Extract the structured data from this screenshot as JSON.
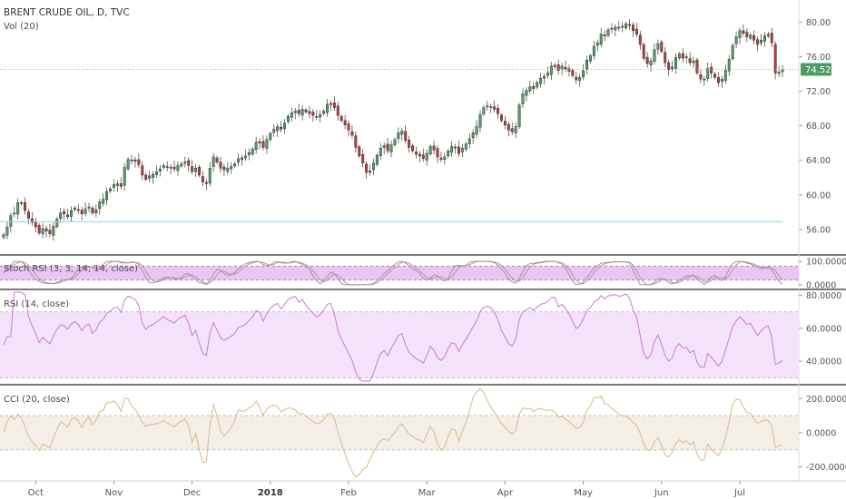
{
  "chart_data": [
    {
      "type": "candlestick",
      "title": "BRENT CRUDE OIL, D, TVC",
      "subtitle": "Vol (20)",
      "ylim": [
        54,
        81.5
      ],
      "y_ticks": [
        "80.00",
        "76.00",
        "72.00",
        "68.00",
        "64.00",
        "60.00",
        "56.00"
      ],
      "y_tick_values": [
        80,
        76,
        72,
        68,
        64,
        60,
        56
      ],
      "last_price": "74.52",
      "last_price_value": 74.52,
      "reference_line": 56.9,
      "x_months": [
        "Oct",
        "Nov",
        "Dec",
        "2018",
        "Feb",
        "Mar",
        "Apr",
        "May",
        "Jun",
        "Jul"
      ],
      "bull_color": "#53a36b",
      "bear_color": "#c23b3b",
      "closes": [
        55.4,
        56.3,
        57.6,
        57.9,
        59.1,
        59.0,
        58.2,
        57.3,
        56.8,
        56.3,
        55.6,
        56.1,
        55.8,
        55.5,
        56.4,
        57.2,
        57.9,
        57.8,
        57.5,
        58.2,
        58.5,
        58.3,
        57.8,
        58.4,
        58.6,
        57.9,
        58.3,
        59.2,
        59.5,
        60.4,
        60.7,
        61.2,
        61.3,
        61.0,
        63.2,
        64.1,
        64.0,
        63.9,
        63.5,
        62.3,
        61.8,
        62.2,
        62.4,
        62.7,
        63.0,
        63.4,
        63.2,
        63.1,
        63.0,
        63.4,
        63.6,
        63.8,
        63.4,
        62.7,
        63.1,
        62.3,
        61.5,
        61.3,
        63.1,
        64.4,
        63.8,
        63.1,
        62.9,
        63.1,
        63.3,
        63.6,
        64.2,
        64.3,
        64.5,
        64.9,
        65.3,
        66.1,
        66.0,
        65.5,
        66.4,
        67.1,
        67.6,
        67.9,
        67.6,
        68.3,
        69.1,
        69.5,
        69.7,
        69.4,
        69.9,
        69.6,
        69.4,
        69.2,
        69.0,
        69.3,
        69.7,
        70.5,
        70.6,
        70.1,
        69.2,
        68.6,
        68.1,
        67.5,
        66.9,
        65.5,
        64.5,
        63.7,
        62.6,
        62.8,
        63.7,
        64.6,
        65.4,
        65.7,
        65.1,
        65.8,
        66.4,
        67.2,
        67.4,
        66.3,
        65.5,
        65.1,
        64.7,
        64.5,
        64.2,
        64.8,
        65.6,
        65.2,
        64.4,
        64.1,
        64.4,
        65.1,
        65.6,
        65.5,
        64.8,
        65.4,
        65.9,
        66.5,
        67.2,
        67.9,
        69.3,
        70.1,
        70.3,
        70.2,
        69.9,
        69.4,
        68.6,
        68.1,
        67.5,
        67.3,
        67.9,
        70.4,
        71.7,
        72.1,
        72.5,
        72.3,
        73.0,
        73.5,
        73.7,
        74.1,
        74.9,
        75.0,
        74.4,
        74.9,
        74.6,
        74.3,
        73.8,
        73.3,
        73.6,
        74.4,
        75.6,
        76.1,
        77.2,
        77.6,
        78.6,
        78.4,
        79.1,
        79.2,
        79.4,
        79.3,
        79.5,
        79.8,
        79.6,
        79.0,
        78.6,
        77.4,
        75.8,
        75.2,
        75.5,
        76.8,
        77.5,
        76.6,
        75.3,
        74.5,
        74.8,
        75.9,
        76.3,
        75.8,
        75.9,
        75.3,
        75.5,
        74.1,
        73.4,
        73.4,
        74.6,
        74.1,
        73.6,
        73.0,
        73.4,
        74.4,
        75.7,
        77.3,
        78.3,
        79.0,
        78.7,
        78.3,
        78.5,
        77.9,
        77.4,
        77.9,
        78.4,
        78.6,
        77.6,
        74.1,
        74.2,
        74.5
      ],
      "x_tick_indices": [
        9,
        31,
        53,
        75,
        97,
        119,
        141,
        163,
        185,
        207
      ],
      "panels": [
        {
          "name": "Stoch RSI (3, 3, 14, 14, close)",
          "ticks": [
            "100.0000",
            "0.0000"
          ],
          "tick_values": [
            100,
            0
          ],
          "band": [
            80,
            20
          ],
          "ylim": [
            -8,
            112
          ]
        },
        {
          "name": "RSI (14, close)",
          "ticks": [
            "80.0000",
            "60.0000",
            "40.0000"
          ],
          "tick_values": [
            80,
            60,
            40
          ],
          "band": [
            70,
            30
          ],
          "ylim": [
            28,
            82
          ]
        },
        {
          "name": "CCI (20, close)",
          "ticks": [
            "200.0000",
            "0.0000",
            "-200.0000"
          ],
          "tick_values": [
            200,
            0,
            -200
          ],
          "band": [
            100,
            -100
          ],
          "ylim": [
            -260,
            260
          ]
        }
      ],
      "grid": false
    }
  ]
}
